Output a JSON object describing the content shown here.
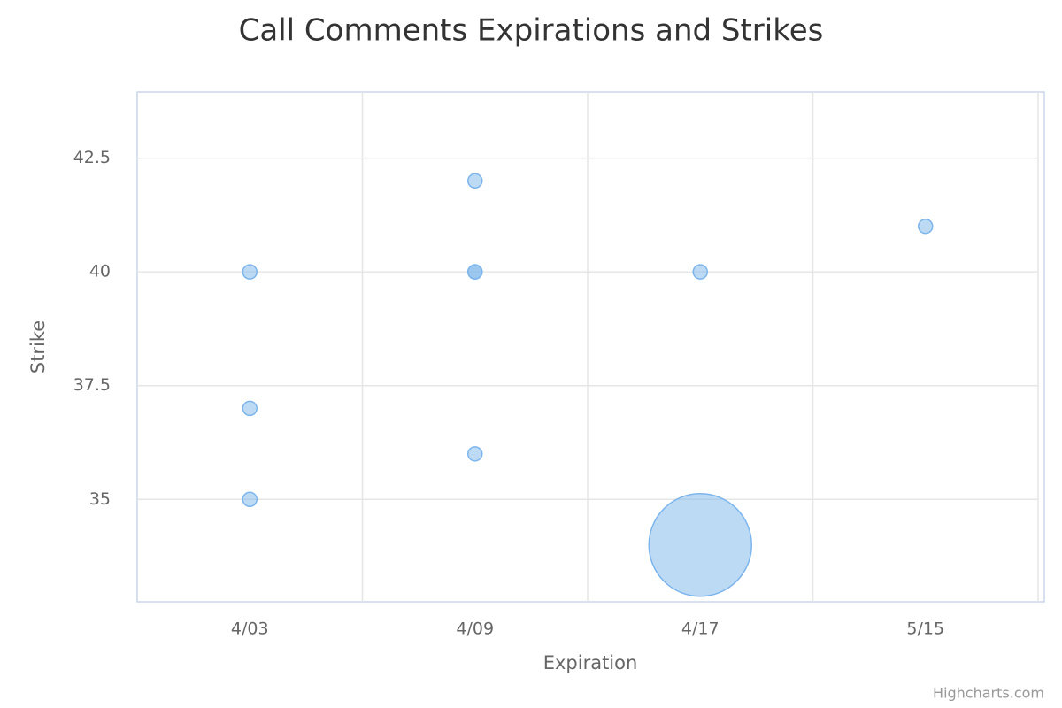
{
  "chart_data": {
    "type": "bubble",
    "title": "Call Comments Expirations and Strikes",
    "x_label": "Expiration",
    "y_label": "Strike",
    "credits": "Highcharts.com",
    "categories": [
      "4/03",
      "4/09",
      "4/17",
      "5/15"
    ],
    "series": [
      {
        "color": "#7cb5ec",
        "x": [
          "4/03",
          "4/03",
          "4/03",
          "4/09",
          "4/09",
          "4/09",
          "4/09",
          "4/17",
          "4/17",
          "5/15"
        ],
        "y": [
          40,
          37,
          35,
          42,
          40,
          40,
          36,
          40,
          34,
          41
        ],
        "z": [
          1,
          1,
          1,
          1,
          1,
          1,
          1,
          1,
          10,
          1
        ]
      }
    ],
    "ylim": [
      32.75,
      43.95
    ],
    "yticks": [
      35,
      37.5,
      40,
      42.5
    ],
    "grid": true
  }
}
